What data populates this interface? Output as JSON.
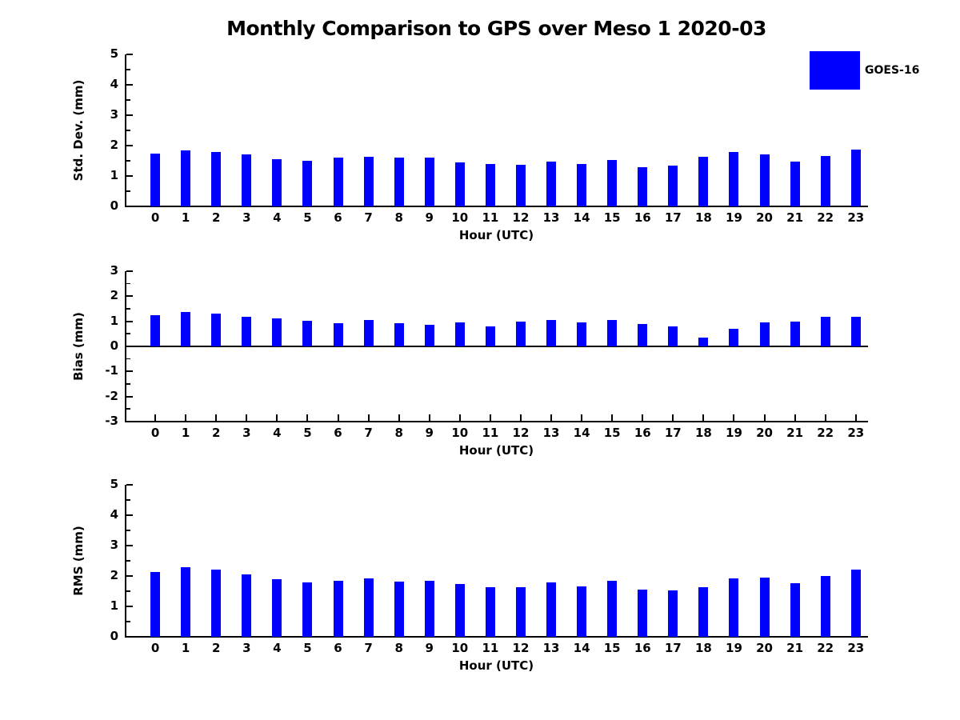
{
  "title": "Monthly Comparison to GPS over Meso 1 2020-03",
  "legend": {
    "label": "GOES-16",
    "color": "#0000ff",
    "position": "upper right"
  },
  "bar_color": "#0000ff",
  "chart_data": [
    {
      "type": "bar",
      "panel": "std-dev",
      "ylabel": "Std. Dev. (mm)",
      "xlabel": "Hour (UTC)",
      "series_name": "GOES-16",
      "categories": [
        "0",
        "1",
        "2",
        "3",
        "4",
        "5",
        "6",
        "7",
        "8",
        "9",
        "10",
        "11",
        "12",
        "13",
        "14",
        "15",
        "16",
        "17",
        "18",
        "19",
        "20",
        "21",
        "22",
        "23"
      ],
      "values": [
        1.75,
        1.83,
        1.8,
        1.71,
        1.55,
        1.5,
        1.61,
        1.63,
        1.61,
        1.6,
        1.44,
        1.39,
        1.36,
        1.47,
        1.4,
        1.52,
        1.28,
        1.34,
        1.63,
        1.78,
        1.72,
        1.47,
        1.67,
        1.88
      ],
      "ylim": [
        0,
        5
      ],
      "yticks": [
        0,
        1,
        2,
        3,
        4,
        5
      ],
      "grid": false
    },
    {
      "type": "bar",
      "panel": "bias",
      "ylabel": "Bias (mm)",
      "xlabel": "Hour (UTC)",
      "series_name": "GOES-16",
      "categories": [
        "0",
        "1",
        "2",
        "3",
        "4",
        "5",
        "6",
        "7",
        "8",
        "9",
        "10",
        "11",
        "12",
        "13",
        "14",
        "15",
        "16",
        "17",
        "18",
        "19",
        "20",
        "21",
        "22",
        "23"
      ],
      "values": [
        1.24,
        1.38,
        1.31,
        1.18,
        1.11,
        1.03,
        0.93,
        1.05,
        0.93,
        0.87,
        0.96,
        0.81,
        0.98,
        1.05,
        0.96,
        1.05,
        0.88,
        0.8,
        0.35,
        0.7,
        0.95,
        1.0,
        1.17,
        1.17
      ],
      "ylim": [
        -3,
        3
      ],
      "yticks": [
        -3,
        -2,
        -1,
        0,
        1,
        2,
        3
      ],
      "zero_line": true,
      "grid": false
    },
    {
      "type": "bar",
      "panel": "rms",
      "ylabel": "RMS (mm)",
      "xlabel": "Hour (UTC)",
      "series_name": "GOES-16",
      "categories": [
        "0",
        "1",
        "2",
        "3",
        "4",
        "5",
        "6",
        "7",
        "8",
        "9",
        "10",
        "11",
        "12",
        "13",
        "14",
        "15",
        "16",
        "17",
        "18",
        "19",
        "20",
        "21",
        "22",
        "23"
      ],
      "values": [
        2.13,
        2.28,
        2.21,
        2.06,
        1.9,
        1.8,
        1.85,
        1.93,
        1.82,
        1.83,
        1.75,
        1.62,
        1.63,
        1.78,
        1.65,
        1.83,
        1.55,
        1.52,
        1.62,
        1.92,
        1.96,
        1.76,
        2.01,
        2.22
      ],
      "ylim": [
        0,
        5
      ],
      "yticks": [
        0,
        1,
        2,
        3,
        4,
        5
      ],
      "grid": false
    }
  ]
}
